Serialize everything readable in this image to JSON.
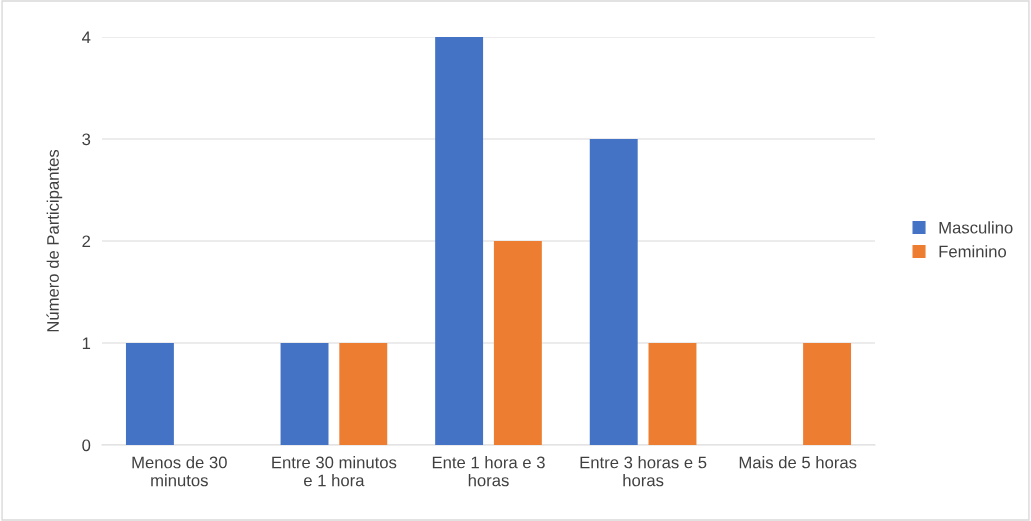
{
  "chart_data": {
    "type": "bar",
    "ylabel": "Número de Participantes",
    "categories": [
      "Menos de 30\nminutos",
      "Entre 30 minutos\ne 1 hora",
      "Ente 1 hora e 3\nhoras",
      "Entre 3 horas e 5\nhoras",
      "Mais de 5 horas"
    ],
    "series": [
      {
        "name": "Masculino",
        "color": "#4472c4",
        "values": [
          1,
          1,
          4,
          3,
          0
        ]
      },
      {
        "name": "Feminino",
        "color": "#ed7d31",
        "values": [
          0,
          1,
          2,
          1,
          1
        ]
      }
    ],
    "ylim": [
      0,
      4
    ],
    "yticks": [
      0,
      1,
      2,
      3,
      4
    ],
    "grid": "y",
    "legend": "right"
  }
}
